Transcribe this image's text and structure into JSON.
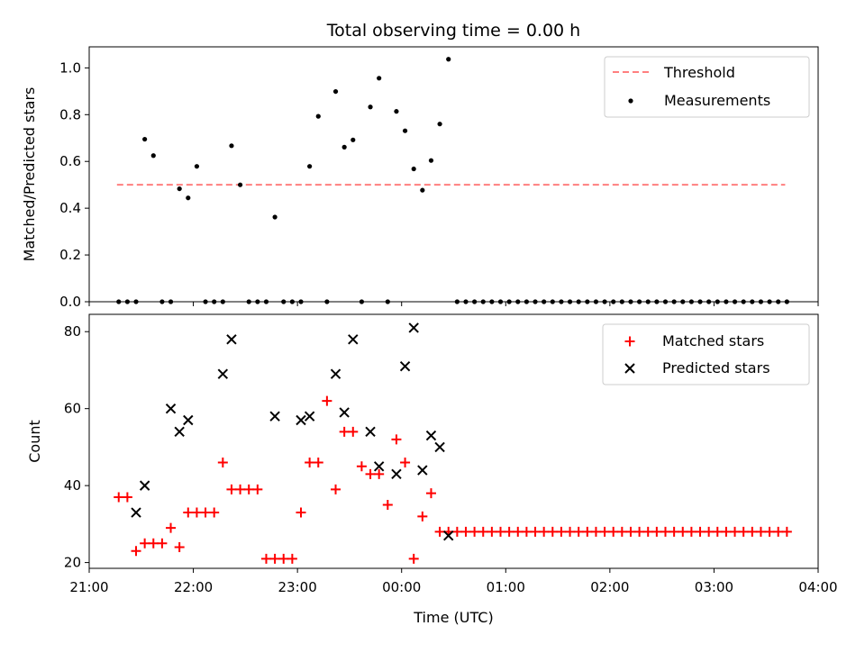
{
  "chart_data": [
    {
      "type": "scatter",
      "title": "Total observing time = 0.00 h",
      "xlabel": "",
      "ylabel": "Matched/Predicted stars",
      "x_range": [
        "21:00",
        "04:00"
      ],
      "ylim": [
        0,
        1.09
      ],
      "y_ticks": [
        "0.0",
        "0.2",
        "0.4",
        "0.6",
        "0.8",
        "1.0"
      ],
      "legend_position": "top-right",
      "colors": {
        "threshold": "#ff7f7f",
        "measurements": "#000000"
      },
      "threshold": {
        "name": "Threshold",
        "value": 0.5,
        "x_start": "21:16",
        "x_end": "03:41",
        "style": "dashed"
      },
      "series": [
        {
          "name": "Measurements",
          "points": [
            [
              "21:17",
              0.0
            ],
            [
              "21:22",
              0.0
            ],
            [
              "21:27",
              0.0
            ],
            [
              "21:32",
              0.695
            ],
            [
              "21:37",
              0.625
            ],
            [
              "21:42",
              0.0
            ],
            [
              "21:47",
              0.0
            ],
            [
              "21:52",
              0.483
            ],
            [
              "21:57",
              0.444
            ],
            [
              "22:02",
              0.579
            ],
            [
              "22:07",
              0.0
            ],
            [
              "22:12",
              0.0
            ],
            [
              "22:17",
              0.0
            ],
            [
              "22:22",
              0.667
            ],
            [
              "22:27",
              0.5
            ],
            [
              "22:32",
              0.0
            ],
            [
              "22:37",
              0.0
            ],
            [
              "22:42",
              0.0
            ],
            [
              "22:47",
              0.362
            ],
            [
              "22:52",
              0.0
            ],
            [
              "22:57",
              0.0
            ],
            [
              "23:02",
              0.0
            ],
            [
              "23:07",
              0.579
            ],
            [
              "23:12",
              0.793
            ],
            [
              "23:17",
              0.0
            ],
            [
              "23:22",
              0.899
            ],
            [
              "23:27",
              0.661
            ],
            [
              "23:32",
              0.692
            ],
            [
              "23:37",
              0.0
            ],
            [
              "23:42",
              0.833
            ],
            [
              "23:47",
              0.956
            ],
            [
              "23:52",
              0.0
            ],
            [
              "23:57",
              0.814
            ],
            [
              "00:02",
              0.731
            ],
            [
              "00:07",
              0.568
            ],
            [
              "00:12",
              0.477
            ],
            [
              "00:17",
              0.604
            ],
            [
              "00:22",
              0.76
            ],
            [
              "00:27",
              1.037
            ],
            [
              "00:32",
              0.0
            ],
            [
              "00:37",
              0.0
            ],
            [
              "00:42",
              0.0
            ],
            [
              "00:47",
              0.0
            ],
            [
              "00:52",
              0.0
            ],
            [
              "00:57",
              0.0
            ],
            [
              "01:02",
              0.0
            ],
            [
              "01:07",
              0.0
            ],
            [
              "01:12",
              0.0
            ],
            [
              "01:17",
              0.0
            ],
            [
              "01:22",
              0.0
            ],
            [
              "01:27",
              0.0
            ],
            [
              "01:32",
              0.0
            ],
            [
              "01:37",
              0.0
            ],
            [
              "01:42",
              0.0
            ],
            [
              "01:47",
              0.0
            ],
            [
              "01:52",
              0.0
            ],
            [
              "01:57",
              0.0
            ],
            [
              "02:02",
              0.0
            ],
            [
              "02:07",
              0.0
            ],
            [
              "02:12",
              0.0
            ],
            [
              "02:17",
              0.0
            ],
            [
              "02:22",
              0.0
            ],
            [
              "02:27",
              0.0
            ],
            [
              "02:32",
              0.0
            ],
            [
              "02:37",
              0.0
            ],
            [
              "02:42",
              0.0
            ],
            [
              "02:47",
              0.0
            ],
            [
              "02:52",
              0.0
            ],
            [
              "02:57",
              0.0
            ],
            [
              "03:02",
              0.0
            ],
            [
              "03:07",
              0.0
            ],
            [
              "03:12",
              0.0
            ],
            [
              "03:17",
              0.0
            ],
            [
              "03:22",
              0.0
            ],
            [
              "03:27",
              0.0
            ],
            [
              "03:32",
              0.0
            ],
            [
              "03:37",
              0.0
            ],
            [
              "03:42",
              0.0
            ]
          ]
        }
      ]
    },
    {
      "type": "scatter",
      "title": "",
      "xlabel": "Time (UTC)",
      "ylabel": "Count",
      "x_range": [
        "21:00",
        "04:00"
      ],
      "x_ticks": [
        "21:00",
        "22:00",
        "23:00",
        "00:00",
        "01:00",
        "02:00",
        "03:00",
        "04:00"
      ],
      "ylim": [
        18.5,
        84.5
      ],
      "y_ticks": [
        "20",
        "40",
        "60",
        "80"
      ],
      "legend_position": "top-right",
      "colors": {
        "matched": "#ff0000",
        "predicted": "#000000"
      },
      "series": [
        {
          "name": "Matched stars",
          "marker": "plus",
          "points": [
            [
              "21:17",
              37
            ],
            [
              "21:22",
              37
            ],
            [
              "21:27",
              23
            ],
            [
              "21:32",
              25
            ],
            [
              "21:37",
              25
            ],
            [
              "21:42",
              25
            ],
            [
              "21:47",
              29
            ],
            [
              "21:52",
              24
            ],
            [
              "21:57",
              33
            ],
            [
              "22:02",
              33
            ],
            [
              "22:07",
              33
            ],
            [
              "22:12",
              33
            ],
            [
              "22:17",
              46
            ],
            [
              "22:22",
              39
            ],
            [
              "22:27",
              39
            ],
            [
              "22:32",
              39
            ],
            [
              "22:37",
              39
            ],
            [
              "22:42",
              21
            ],
            [
              "22:47",
              21
            ],
            [
              "22:52",
              21
            ],
            [
              "22:57",
              21
            ],
            [
              "23:02",
              33
            ],
            [
              "23:07",
              46
            ],
            [
              "23:12",
              46
            ],
            [
              "23:17",
              62
            ],
            [
              "23:22",
              39
            ],
            [
              "23:27",
              54
            ],
            [
              "23:32",
              54
            ],
            [
              "23:37",
              45
            ],
            [
              "23:42",
              43
            ],
            [
              "23:47",
              43
            ],
            [
              "23:52",
              35
            ],
            [
              "23:57",
              52
            ],
            [
              "00:02",
              46
            ],
            [
              "00:07",
              21
            ],
            [
              "00:12",
              32
            ],
            [
              "00:17",
              38
            ],
            [
              "00:22",
              28
            ],
            [
              "00:27",
              28
            ],
            [
              "00:32",
              28
            ],
            [
              "00:37",
              28
            ],
            [
              "00:42",
              28
            ],
            [
              "00:47",
              28
            ],
            [
              "00:52",
              28
            ],
            [
              "00:57",
              28
            ],
            [
              "01:02",
              28
            ],
            [
              "01:07",
              28
            ],
            [
              "01:12",
              28
            ],
            [
              "01:17",
              28
            ],
            [
              "01:22",
              28
            ],
            [
              "01:27",
              28
            ],
            [
              "01:32",
              28
            ],
            [
              "01:37",
              28
            ],
            [
              "01:42",
              28
            ],
            [
              "01:47",
              28
            ],
            [
              "01:52",
              28
            ],
            [
              "01:57",
              28
            ],
            [
              "02:02",
              28
            ],
            [
              "02:07",
              28
            ],
            [
              "02:12",
              28
            ],
            [
              "02:17",
              28
            ],
            [
              "02:22",
              28
            ],
            [
              "02:27",
              28
            ],
            [
              "02:32",
              28
            ],
            [
              "02:37",
              28
            ],
            [
              "02:42",
              28
            ],
            [
              "02:47",
              28
            ],
            [
              "02:52",
              28
            ],
            [
              "02:57",
              28
            ],
            [
              "03:02",
              28
            ],
            [
              "03:07",
              28
            ],
            [
              "03:12",
              28
            ],
            [
              "03:17",
              28
            ],
            [
              "03:22",
              28
            ],
            [
              "03:27",
              28
            ],
            [
              "03:32",
              28
            ],
            [
              "03:37",
              28
            ],
            [
              "03:42",
              28
            ]
          ]
        },
        {
          "name": "Predicted stars",
          "marker": "x",
          "points": [
            [
              "21:27",
              33
            ],
            [
              "21:32",
              40
            ],
            [
              "21:47",
              60
            ],
            [
              "21:52",
              54
            ],
            [
              "21:57",
              57
            ],
            [
              "22:17",
              69
            ],
            [
              "22:22",
              78
            ],
            [
              "22:47",
              58
            ],
            [
              "23:02",
              57
            ],
            [
              "23:07",
              58
            ],
            [
              "23:22",
              69
            ],
            [
              "23:27",
              59
            ],
            [
              "23:32",
              78
            ],
            [
              "23:42",
              54
            ],
            [
              "23:47",
              45
            ],
            [
              "23:57",
              43
            ],
            [
              "00:02",
              71
            ],
            [
              "00:07",
              81
            ],
            [
              "00:12",
              44
            ],
            [
              "00:17",
              53
            ],
            [
              "00:22",
              50
            ],
            [
              "00:27",
              27
            ]
          ]
        }
      ]
    }
  ]
}
